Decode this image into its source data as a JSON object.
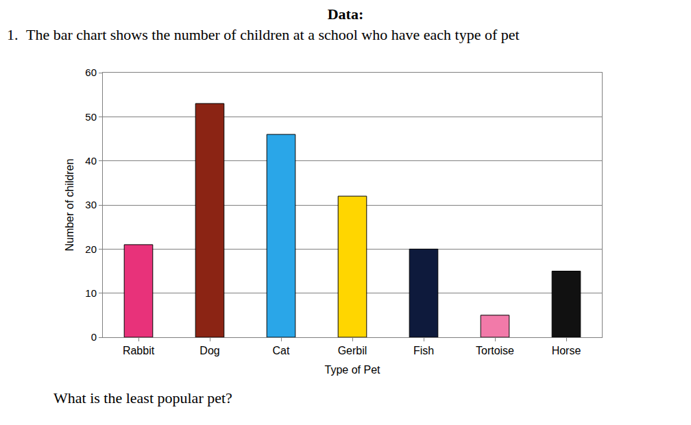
{
  "heading": "Data:",
  "question_number": "1.",
  "question": "The bar chart shows the number of children at a school who have each type of pet",
  "chart_data": {
    "type": "bar",
    "categories": [
      "Rabbit",
      "Dog",
      "Cat",
      "Gerbil",
      "Fish",
      "Tortoise",
      "Horse"
    ],
    "values": [
      21,
      53,
      46,
      32,
      20,
      5,
      15
    ],
    "colors": [
      "#e8327a",
      "#8b2414",
      "#2aa6e8",
      "#ffd600",
      "#0e1a3c",
      "#f27aa9",
      "#111111"
    ],
    "xlabel": "Type of Pet",
    "ylabel": "Number of children",
    "ylim": [
      0,
      60
    ],
    "yticks": [
      0,
      10,
      20,
      30,
      40,
      50,
      60
    ],
    "grid": true
  },
  "prompt": "What is the least popular pet?"
}
